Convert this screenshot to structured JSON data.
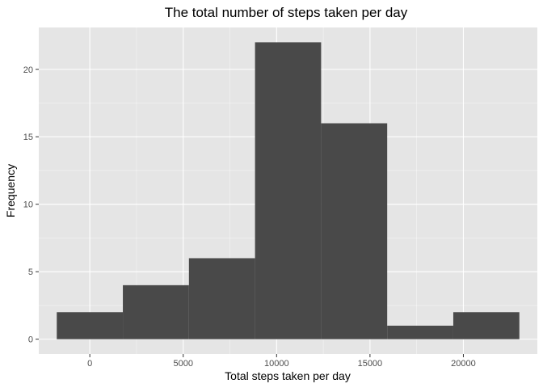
{
  "chart_data": {
    "type": "bar",
    "title": "The total number of steps taken per day",
    "xlabel": "Total steps taken per day",
    "ylabel": "Frequency",
    "bins": [
      {
        "start": -1769,
        "end": 1769,
        "count": 2
      },
      {
        "start": 1769,
        "end": 5307,
        "count": 4
      },
      {
        "start": 5307,
        "end": 8845,
        "count": 6
      },
      {
        "start": 8845,
        "end": 12383,
        "count": 22
      },
      {
        "start": 12383,
        "end": 15921,
        "count": 16
      },
      {
        "start": 15921,
        "end": 19459,
        "count": 1
      },
      {
        "start": 19459,
        "end": 22997,
        "count": 2
      }
    ],
    "xlim": [
      -2732,
      23960
    ],
    "ylim": [
      -1.1,
      23.1
    ],
    "x_ticks": [
      0,
      5000,
      10000,
      15000,
      20000
    ],
    "x_tick_labels": [
      "0",
      "5000",
      "10000",
      "15000",
      "20000"
    ],
    "y_ticks": [
      0,
      5,
      10,
      15,
      20
    ],
    "y_tick_labels": [
      "0",
      "5",
      "10",
      "15",
      "20"
    ],
    "grid": true,
    "colors": {
      "panel": "#e5e5e5",
      "grid_major": "#ffffff",
      "bar_fill": "#494949",
      "tick": "#333333"
    }
  }
}
